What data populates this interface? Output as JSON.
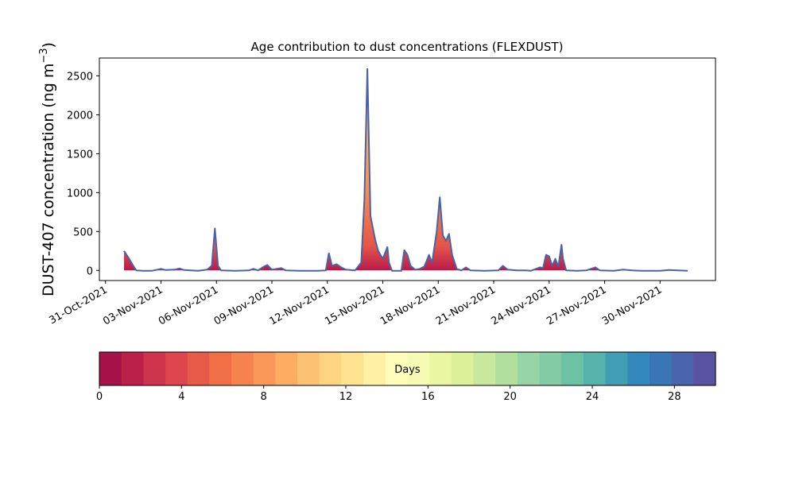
{
  "chart_data": {
    "type": "area",
    "title": "Age contribution to dust concentrations (FLEXDUST)",
    "ylabel_main": "DUST-407 concentration (ng m",
    "ylabel_sup": "−3",
    "ylabel_close": ")",
    "xlabel": "",
    "ylim": [
      -130,
      2730
    ],
    "xlim": [
      "2021-10-30T16:00",
      "2021-12-03T00:00"
    ],
    "y_ticks": [
      0,
      500,
      1000,
      1500,
      2000,
      2500
    ],
    "x_ticks": [
      {
        "date": "2021-10-31",
        "label": "31-Oct-2021"
      },
      {
        "date": "2021-11-03",
        "label": "03-Nov-2021"
      },
      {
        "date": "2021-11-06",
        "label": "06-Nov-2021"
      },
      {
        "date": "2021-11-09",
        "label": "09-Nov-2021"
      },
      {
        "date": "2021-11-12",
        "label": "12-Nov-2021"
      },
      {
        "date": "2021-11-15",
        "label": "15-Nov-2021"
      },
      {
        "date": "2021-11-18",
        "label": "18-Nov-2021"
      },
      {
        "date": "2021-11-21",
        "label": "21-Nov-2021"
      },
      {
        "date": "2021-11-24",
        "label": "24-Nov-2021"
      },
      {
        "date": "2021-11-27",
        "label": "27-Nov-2021"
      },
      {
        "date": "2021-11-30",
        "label": "30-Nov-2021"
      }
    ],
    "grid": false,
    "total_series": [
      [
        "2021-11-01T00:00",
        250
      ],
      [
        "2021-11-01T06:00",
        160
      ],
      [
        "2021-11-01T12:00",
        60
      ],
      [
        "2021-11-01T16:00",
        0
      ],
      [
        "2021-11-02T00:00",
        -5
      ],
      [
        "2021-11-02T12:00",
        -5
      ],
      [
        "2021-11-03T00:00",
        20
      ],
      [
        "2021-11-03T06:00",
        5
      ],
      [
        "2021-11-03T18:00",
        10
      ],
      [
        "2021-11-04T00:00",
        25
      ],
      [
        "2021-11-04T06:00",
        5
      ],
      [
        "2021-11-05T00:00",
        -5
      ],
      [
        "2021-11-05T12:00",
        10
      ],
      [
        "2021-11-05T18:00",
        60
      ],
      [
        "2021-11-05T22:00",
        540
      ],
      [
        "2021-11-06T02:00",
        60
      ],
      [
        "2021-11-06T06:00",
        0
      ],
      [
        "2021-11-07T00:00",
        -5
      ],
      [
        "2021-11-07T18:00",
        0
      ],
      [
        "2021-11-08T00:00",
        20
      ],
      [
        "2021-11-08T06:00",
        0
      ],
      [
        "2021-11-08T12:00",
        40
      ],
      [
        "2021-11-08T18:00",
        70
      ],
      [
        "2021-11-09T00:00",
        10
      ],
      [
        "2021-11-09T06:00",
        20
      ],
      [
        "2021-11-09T12:00",
        30
      ],
      [
        "2021-11-09T18:00",
        0
      ],
      [
        "2021-11-10T12:00",
        -5
      ],
      [
        "2021-11-11T12:00",
        -5
      ],
      [
        "2021-11-11T22:00",
        0
      ],
      [
        "2021-11-12T02:00",
        220
      ],
      [
        "2021-11-12T06:00",
        60
      ],
      [
        "2021-11-12T12:00",
        80
      ],
      [
        "2021-11-12T18:00",
        40
      ],
      [
        "2021-11-13T00:00",
        10
      ],
      [
        "2021-11-13T12:00",
        0
      ],
      [
        "2021-11-13T20:00",
        100
      ],
      [
        "2021-11-14T00:00",
        900
      ],
      [
        "2021-11-14T04:00",
        2590
      ],
      [
        "2021-11-14T08:00",
        700
      ],
      [
        "2021-11-14T14:00",
        400
      ],
      [
        "2021-11-14T18:00",
        250
      ],
      [
        "2021-11-15T00:00",
        150
      ],
      [
        "2021-11-15T06:00",
        300
      ],
      [
        "2021-11-15T08:00",
        100
      ],
      [
        "2021-11-15T12:00",
        -5
      ],
      [
        "2021-11-16T00:00",
        -5
      ],
      [
        "2021-11-16T04:00",
        260
      ],
      [
        "2021-11-16T08:00",
        200
      ],
      [
        "2021-11-16T12:00",
        60
      ],
      [
        "2021-11-16T18:00",
        10
      ],
      [
        "2021-11-17T00:00",
        20
      ],
      [
        "2021-11-17T06:00",
        50
      ],
      [
        "2021-11-17T12:00",
        200
      ],
      [
        "2021-11-17T16:00",
        100
      ],
      [
        "2021-11-17T22:00",
        500
      ],
      [
        "2021-11-18T02:00",
        940
      ],
      [
        "2021-11-18T06:00",
        450
      ],
      [
        "2021-11-18T10:00",
        380
      ],
      [
        "2021-11-18T14:00",
        470
      ],
      [
        "2021-11-18T18:00",
        200
      ],
      [
        "2021-11-19T00:00",
        20
      ],
      [
        "2021-11-19T06:00",
        0
      ],
      [
        "2021-11-19T12:00",
        40
      ],
      [
        "2021-11-19T18:00",
        0
      ],
      [
        "2021-11-20T12:00",
        -5
      ],
      [
        "2021-11-21T06:00",
        0
      ],
      [
        "2021-11-21T12:00",
        60
      ],
      [
        "2021-11-21T18:00",
        10
      ],
      [
        "2021-11-22T06:00",
        0
      ],
      [
        "2021-11-22T18:00",
        0
      ],
      [
        "2021-11-23T00:00",
        -5
      ],
      [
        "2021-11-23T12:00",
        40
      ],
      [
        "2021-11-23T16:00",
        30
      ],
      [
        "2021-11-23T20:00",
        200
      ],
      [
        "2021-11-24T00:00",
        180
      ],
      [
        "2021-11-24T04:00",
        60
      ],
      [
        "2021-11-24T08:00",
        150
      ],
      [
        "2021-11-24T12:00",
        50
      ],
      [
        "2021-11-24T16:00",
        330
      ],
      [
        "2021-11-24T18:00",
        150
      ],
      [
        "2021-11-24T22:00",
        0
      ],
      [
        "2021-11-25T12:00",
        -5
      ],
      [
        "2021-11-26T00:00",
        0
      ],
      [
        "2021-11-26T12:00",
        40
      ],
      [
        "2021-11-26T18:00",
        0
      ],
      [
        "2021-11-27T12:00",
        -5
      ],
      [
        "2021-11-28T00:00",
        10
      ],
      [
        "2021-11-28T12:00",
        0
      ],
      [
        "2021-11-29T00:00",
        -5
      ],
      [
        "2021-11-30T00:00",
        -5
      ],
      [
        "2021-11-30T12:00",
        5
      ],
      [
        "2021-12-01T00:00",
        0
      ],
      [
        "2021-12-01T12:00",
        -5
      ]
    ],
    "line_color": "#4a62a8",
    "colorbar": {
      "label": "Days",
      "min": 0,
      "max": 30,
      "ticks": [
        "0",
        "4",
        "8",
        "12",
        "16",
        "20",
        "24",
        "28"
      ],
      "colors": [
        "#a6114a",
        "#bb2049",
        "#cd334c",
        "#dc464c",
        "#e65a49",
        "#f06f47",
        "#f6834d",
        "#f99858",
        "#fcad62",
        "#fdc271",
        "#fed381",
        "#fee391",
        "#fff0a4",
        "#fffbb8",
        "#f6fbb4",
        "#eaf6a2",
        "#dbf099",
        "#c8e89d",
        "#b1df9e",
        "#98d5a4",
        "#82cba5",
        "#6cc2a5",
        "#56b2ac",
        "#429eb4",
        "#3489bc",
        "#3a76b5",
        "#4a65ac",
        "#5a53a4"
      ]
    }
  }
}
